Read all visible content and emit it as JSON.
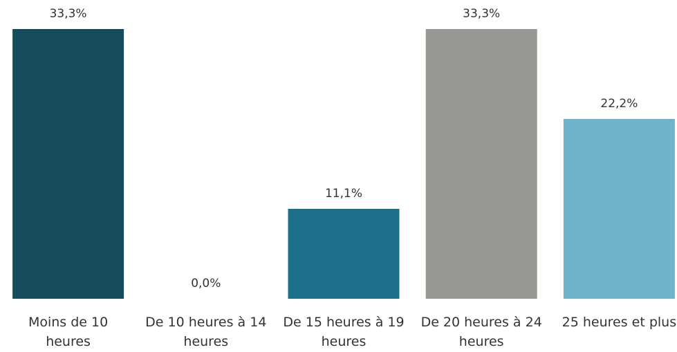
{
  "chart_data": {
    "type": "bar",
    "categories": [
      "Moins de 10 heures",
      "De 10 heures à 14 heures",
      "De 15 heures à 19 heures",
      "De 20 heures à 24 heures",
      "25 heures et plus"
    ],
    "values": [
      33.3,
      0.0,
      11.1,
      33.3,
      22.2
    ],
    "value_labels": [
      "33,3%",
      "0,0%",
      "11,1%",
      "33,3%",
      "22,2%"
    ],
    "colors": [
      "#154b5a",
      "#1b6f8a",
      "#1b6f8a",
      "#979793",
      "#70b2ca"
    ],
    "ylim": [
      0,
      33.3
    ],
    "grid": false
  }
}
